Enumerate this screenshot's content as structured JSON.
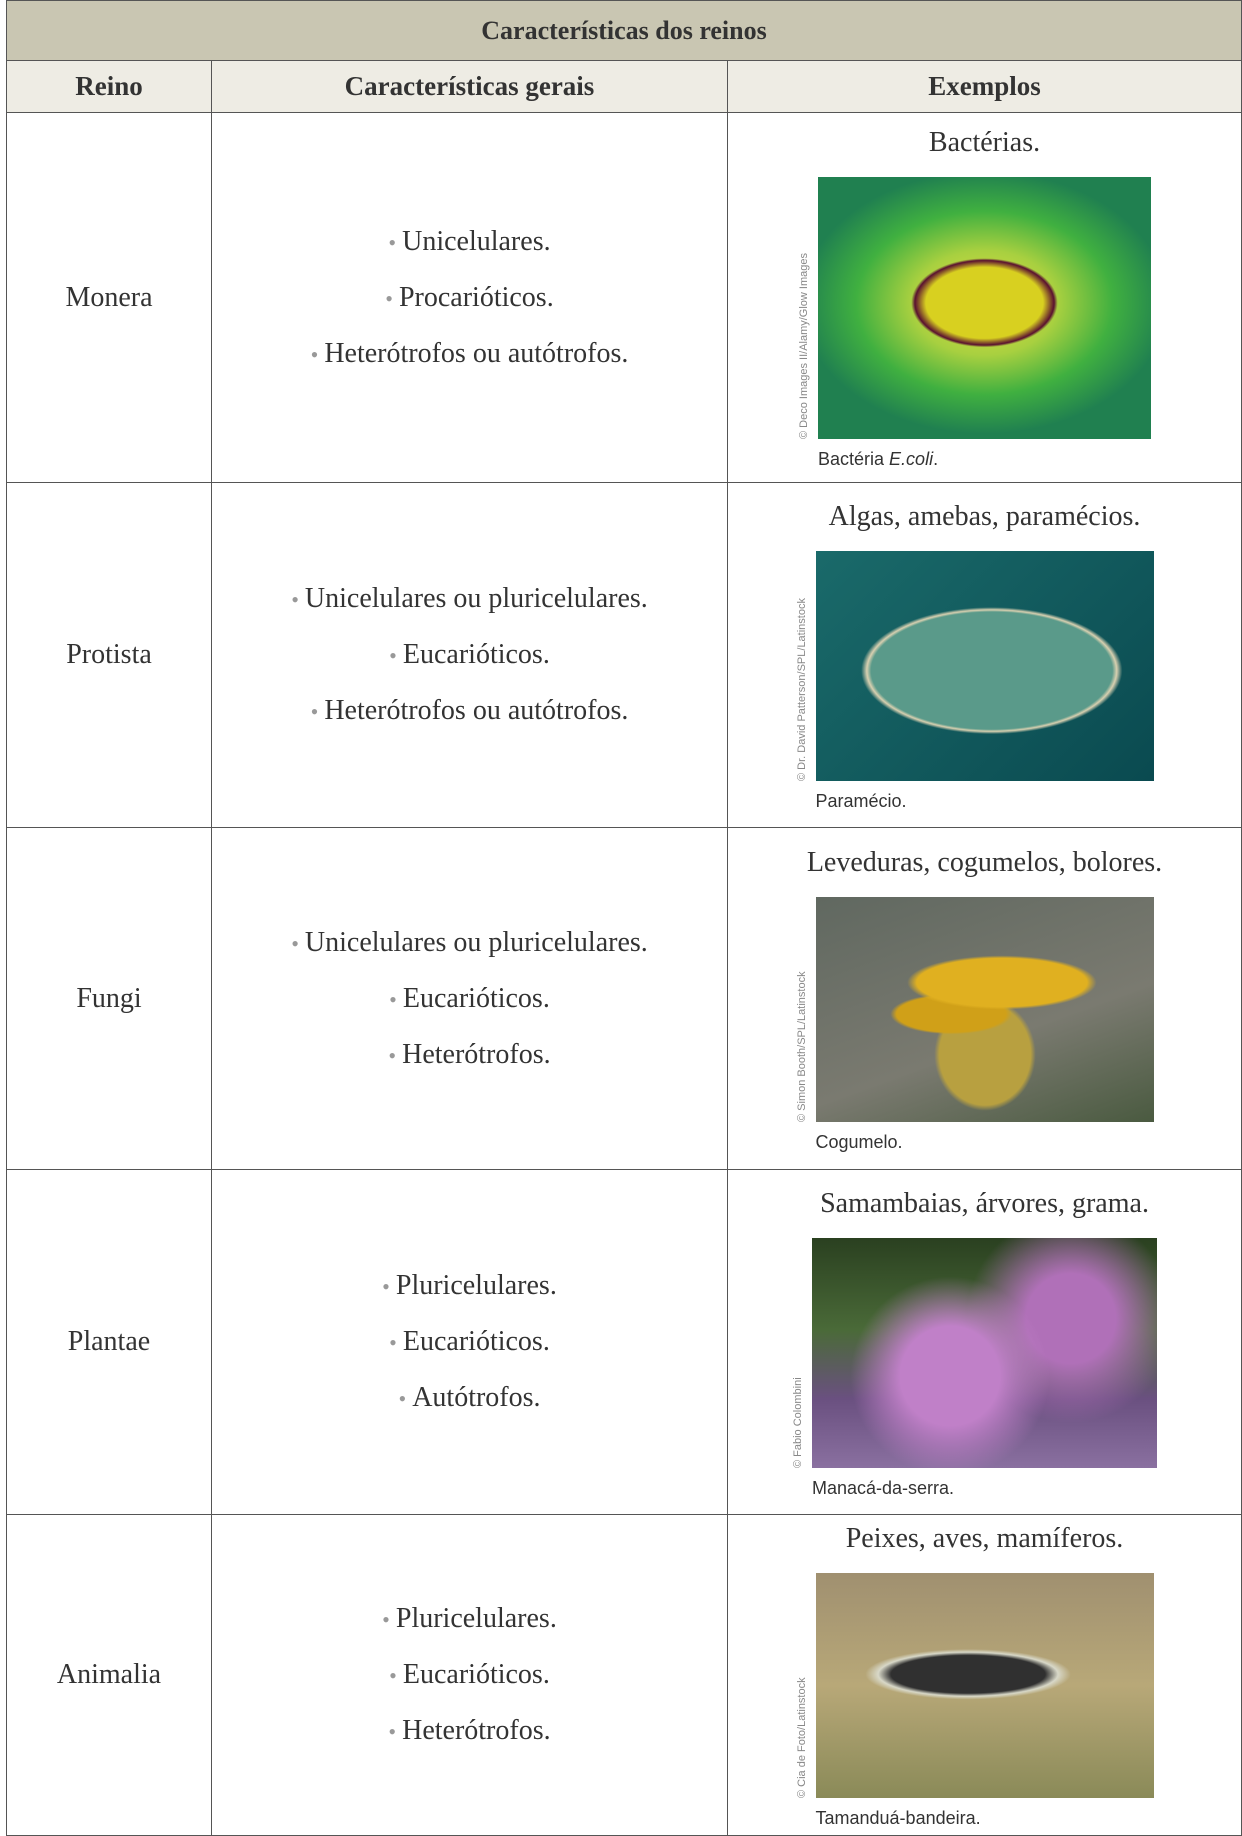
{
  "table": {
    "title": "Características dos reinos",
    "headers": [
      "Reino",
      "Características gerais",
      "Exemplos"
    ],
    "rows": [
      {
        "reino": "Monera",
        "features": [
          "Unicelulares.",
          "Procarióticos.",
          "Heterótrofos ou autótrofos."
        ],
        "examples": "Bactérias.",
        "caption": [
          {
            "text": "Bactéria",
            "italic": false
          },
          {
            "text": "E.coli",
            "italic": true
          },
          {
            "text": ".",
            "italic": false
          }
        ],
        "credit": "© Deco Images II/Alamy/Glow Images"
      },
      {
        "reino": "Protista",
        "features": [
          "Unicelulares ou pluricelulares.",
          "Eucarióticos.",
          "Heterótrofos ou autótrofos."
        ],
        "examples": "Algas, amebas, paramécios.",
        "caption": [
          {
            "text": "Paramécio.",
            "italic": false
          }
        ],
        "credit": "© Dr. David Patterson/SPL/Latinstock"
      },
      {
        "reino": "Fungi",
        "features": [
          "Unicelulares ou pluricelulares.",
          "Eucarióticos.",
          "Heterótrofos."
        ],
        "examples": "Leveduras, cogumelos, bolores.",
        "caption": [
          {
            "text": "Cogumelo.",
            "italic": false
          }
        ],
        "credit": "© Simon Booth/SPL/Latinstock"
      },
      {
        "reino": "Plantae",
        "features": [
          "Pluricelulares.",
          "Eucarióticos.",
          "Autótrofos."
        ],
        "examples": "Samambaias, árvores, grama.",
        "caption": [
          {
            "text": "Manacá-da-serra.",
            "italic": false
          }
        ],
        "credit": "© Fabio Colombini"
      },
      {
        "reino": "Animalia",
        "features": [
          "Pluricelulares.",
          "Eucarióticos.",
          "Heterótrofos."
        ],
        "examples": "Peixes, aves, mamíferos.",
        "caption": [
          {
            "text": "Tamanduá-bandeira.",
            "italic": false
          }
        ],
        "credit": "© Cia de Foto/Latinstock"
      }
    ]
  }
}
